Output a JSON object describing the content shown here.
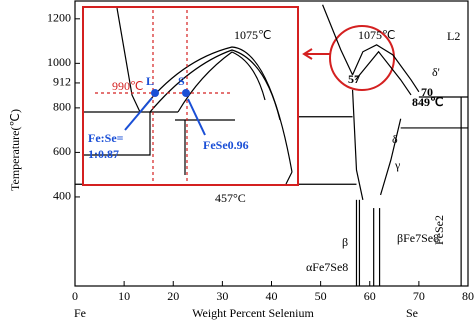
{
  "chart_data": {
    "type": "line",
    "x_label": "Weight Percent Selenium",
    "y_label": "Temperature(℃)",
    "x_end_labels": [
      "Fe",
      "Se"
    ],
    "xlim": [
      0,
      80
    ],
    "ylim": [
      0,
      1280
    ],
    "xticks": [
      0,
      10,
      20,
      30,
      40,
      50,
      60,
      70,
      80
    ],
    "yticks": [
      400,
      600,
      800,
      912,
      1000,
      1200
    ],
    "color": "#000000",
    "series": [
      {
        "x": [
          50.4,
          54.1,
          56.5
        ],
        "y": [
          1263,
          1061,
          948
        ]
      },
      {
        "x": [
          56.5,
          58.6,
          61.4,
          64.7,
          68.4,
          70.0
        ],
        "y": [
          948,
          1052,
          1083,
          1038,
          926,
          872
        ]
      },
      {
        "x": [
          57.1,
          61.8,
          66.3,
          68.4
        ],
        "y": [
          926,
          1052,
          926,
          858
        ]
      },
      {
        "x": [
          70.0,
          80.0
        ],
        "y": [
          849,
          849
        ]
      },
      {
        "x": [
          56.5,
          57.3,
          58.6
        ],
        "y": [
          881,
          521,
          387
        ]
      },
      {
        "x": [
          66.3,
          64.3,
          62.2
        ],
        "y": [
          751,
          566,
          409
        ]
      },
      {
        "x": [
          0,
          57.3
        ],
        "y": [
          457,
          457
        ]
      },
      {
        "x": [
          57.3,
          57.3
        ],
        "y": [
          387,
          0
        ]
      },
      {
        "x": [
          57.9,
          57.9
        ],
        "y": [
          387,
          0
        ]
      },
      {
        "x": [
          60.8,
          60.8
        ],
        "y": [
          350,
          0
        ]
      },
      {
        "x": [
          62.0,
          62.0
        ],
        "y": [
          350,
          0
        ]
      },
      {
        "x": [
          78.6,
          78.6
        ],
        "y": [
          849,
          0
        ]
      },
      {
        "x": [
          66.3,
          80.0
        ],
        "y": [
          710,
          710
        ]
      },
      {
        "x": [
          44.9,
          56.5
        ],
        "y": [
          760,
          760
        ]
      }
    ],
    "annotations": [
      "1075℃",
      "990℃",
      "L",
      "S",
      "Fe:Se=",
      "1:0.87",
      "FeSe0.96",
      "1075℃",
      "L2",
      "δ'",
      "57",
      "70",
      "849℃",
      "δ",
      "γ",
      "457°C",
      "β",
      "FeSe2",
      "βFe7Se8",
      "αFe7Se8"
    ]
  }
}
